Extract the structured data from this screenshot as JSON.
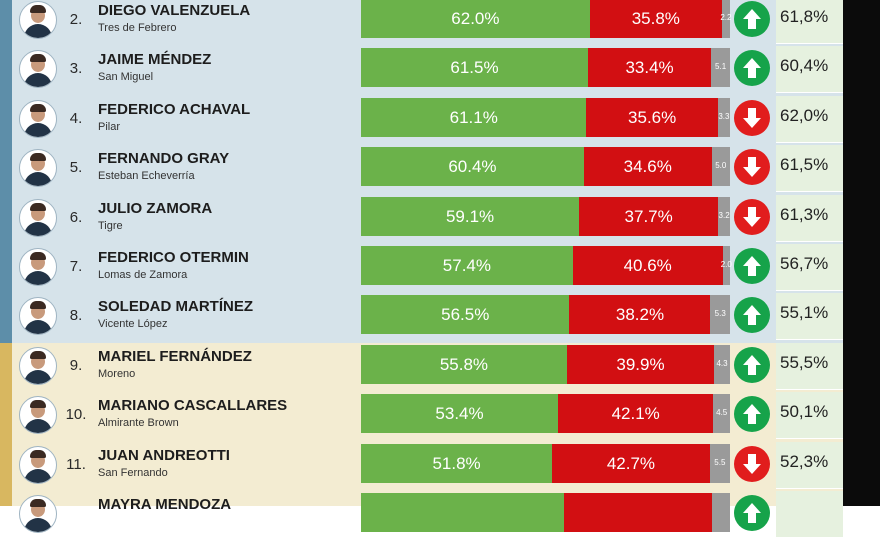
{
  "rows": [
    {
      "rank": "2.",
      "name": "DIEGO VALENZUELA",
      "municipality": "Tres de Febrero",
      "positive": "62.0%",
      "negative": "35.8%",
      "undecided": "2.2",
      "trend": "up",
      "previous": "61,8%",
      "pos": 62.0,
      "neg": 35.8,
      "und": 2.2,
      "band": "blue"
    },
    {
      "rank": "3.",
      "name": "JAIME MÉNDEZ",
      "municipality": "San Miguel",
      "positive": "61.5%",
      "negative": "33.4%",
      "undecided": "5.1",
      "trend": "up",
      "previous": "60,4%",
      "pos": 61.5,
      "neg": 33.4,
      "und": 5.1,
      "band": "blue"
    },
    {
      "rank": "4.",
      "name": "FEDERICO ACHAVAL",
      "municipality": "Pilar",
      "positive": "61.1%",
      "negative": "35.6%",
      "undecided": "3.3",
      "trend": "down",
      "previous": "62,0%",
      "pos": 61.1,
      "neg": 35.6,
      "und": 3.3,
      "band": "blue"
    },
    {
      "rank": "5.",
      "name": "FERNANDO GRAY",
      "municipality": "Esteban Echeverría",
      "positive": "60.4%",
      "negative": "34.6%",
      "undecided": "5.0",
      "trend": "down",
      "previous": "61,5%",
      "pos": 60.4,
      "neg": 34.6,
      "und": 5.0,
      "band": "blue"
    },
    {
      "rank": "6.",
      "name": "JULIO ZAMORA",
      "municipality": "Tigre",
      "positive": "59.1%",
      "negative": "37.7%",
      "undecided": "3.2",
      "trend": "down",
      "previous": "61,3%",
      "pos": 59.1,
      "neg": 37.7,
      "und": 3.2,
      "band": "blue"
    },
    {
      "rank": "7.",
      "name": "FEDERICO OTERMIN",
      "municipality": "Lomas de Zamora",
      "positive": "57.4%",
      "negative": "40.6%",
      "undecided": "2.0",
      "trend": "up",
      "previous": "56,7%",
      "pos": 57.4,
      "neg": 40.6,
      "und": 2.0,
      "band": "blue"
    },
    {
      "rank": "8.",
      "name": "SOLEDAD MARTÍNEZ",
      "municipality": "Vicente López",
      "positive": "56.5%",
      "negative": "38.2%",
      "undecided": "5.3",
      "trend": "up",
      "previous": "55,1%",
      "pos": 56.5,
      "neg": 38.2,
      "und": 5.3,
      "band": "blue"
    },
    {
      "rank": "9.",
      "name": "MARIEL FERNÁNDEZ",
      "municipality": "Moreno",
      "positive": "55.8%",
      "negative": "39.9%",
      "undecided": "4.3",
      "trend": "up",
      "previous": "55,5%",
      "pos": 55.8,
      "neg": 39.9,
      "und": 4.3,
      "band": "cream"
    },
    {
      "rank": "10.",
      "name": "MARIANO CASCALLARES",
      "municipality": "Almirante Brown",
      "positive": "53.4%",
      "negative": "42.1%",
      "undecided": "4.5",
      "trend": "up",
      "previous": "50,1%",
      "pos": 53.4,
      "neg": 42.1,
      "und": 4.5,
      "band": "cream"
    },
    {
      "rank": "11.",
      "name": "JUAN ANDREOTTI",
      "municipality": "San Fernando",
      "positive": "51.8%",
      "negative": "42.7%",
      "undecided": "5.5",
      "trend": "down",
      "previous": "52,3%",
      "pos": 51.8,
      "neg": 42.7,
      "und": 5.5,
      "band": "cream"
    },
    {
      "rank": "",
      "name": "MAYRA MENDOZA",
      "municipality": "",
      "positive": "",
      "negative": "",
      "undecided": "",
      "trend": "up",
      "previous": "",
      "pos": 55.0,
      "neg": 40.0,
      "und": 5.0,
      "band": "cream"
    }
  ],
  "colors": {
    "positive": "#6bb24a",
    "negative": "#d20f12",
    "undecided": "#9a9a9a",
    "trend_up": "#16a34a",
    "trend_down": "#e11d1d",
    "band_blue": "#d6e3ea",
    "band_cream": "#f3ecd2"
  },
  "icons": {
    "trend_up": "arrow-up-circle-icon",
    "trend_down": "arrow-down-circle-icon",
    "photo": "person-photo"
  }
}
